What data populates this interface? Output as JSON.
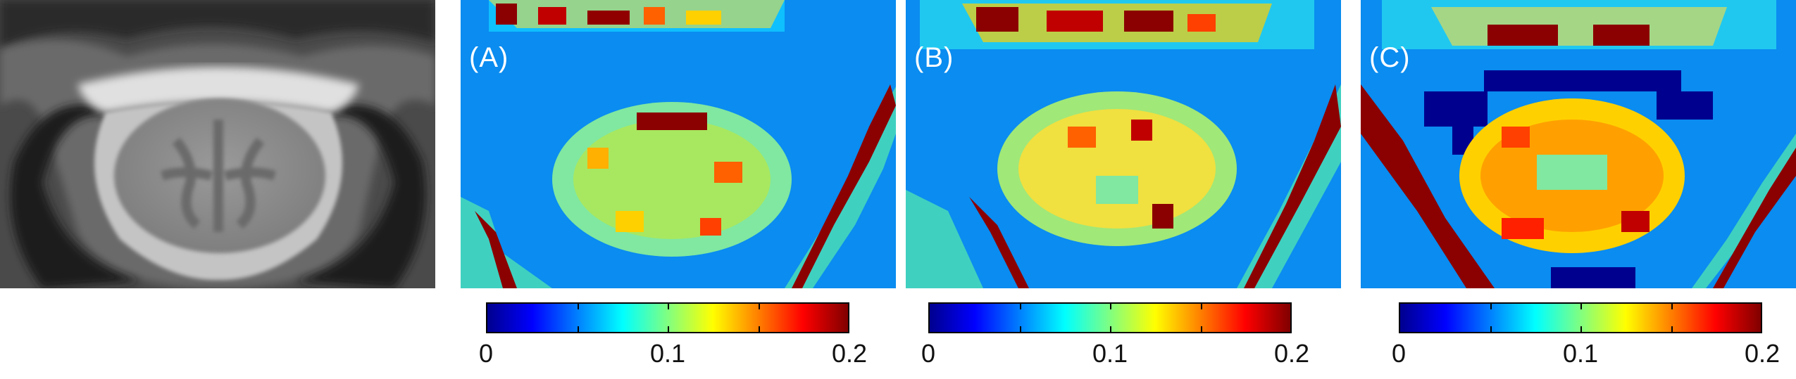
{
  "panels": [
    {
      "id": "mri",
      "label": ""
    },
    {
      "id": "A",
      "label": "(A)"
    },
    {
      "id": "B",
      "label": "(B)"
    },
    {
      "id": "C",
      "label": "(C)"
    }
  ],
  "colorbar": {
    "colormap": "jet",
    "colors": [
      "#00008f",
      "#0000ff",
      "#0080ff",
      "#00ffff",
      "#80ff80",
      "#ffff00",
      "#ff8000",
      "#ff0000",
      "#800000"
    ],
    "min_label": "0",
    "mid_label": "0.1",
    "max_label": "0.2"
  }
}
